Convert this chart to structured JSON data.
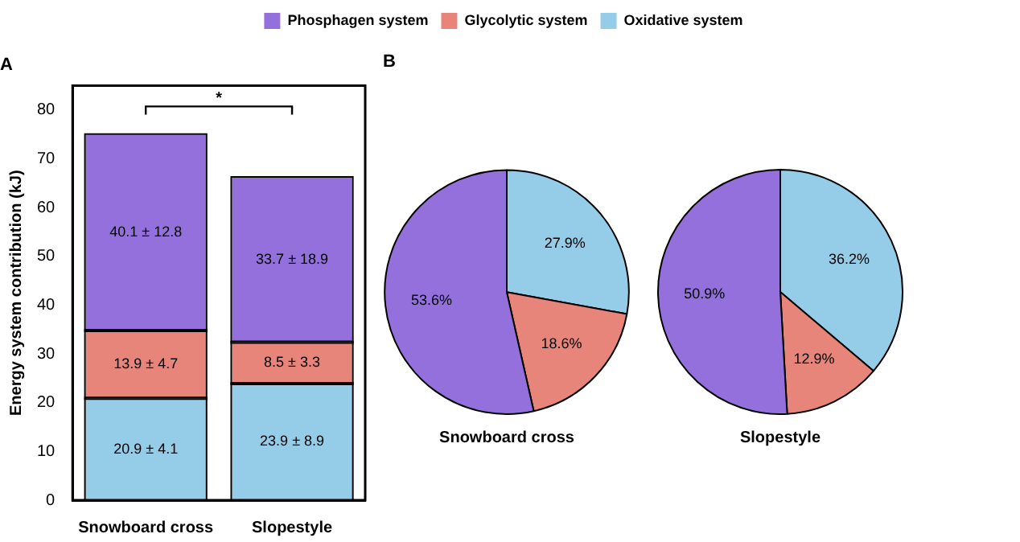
{
  "chart_data": [
    {
      "type": "bar",
      "title": "A",
      "ylabel": "Energy system contribution (kJ)",
      "categories": [
        "Snowboard cross",
        "Slopestyle"
      ],
      "stacked": true,
      "series": [
        {
          "name": "Oxidative system",
          "color": "#95cde8",
          "values": [
            20.9,
            23.9
          ],
          "value_labels": [
            "20.9 ± 4.1",
            "23.9 ± 8.9"
          ]
        },
        {
          "name": "Glycolytic system",
          "color": "#e8857a",
          "values": [
            13.9,
            8.5
          ],
          "value_labels": [
            "13.9 ± 4.7",
            "8.5 ± 3.3"
          ]
        },
        {
          "name": "Phosphagen system",
          "color": "#9370db",
          "values": [
            40.1,
            33.7
          ],
          "value_labels": [
            "40.1 ± 12.8",
            "33.7 ± 18.9"
          ]
        }
      ],
      "ylim": [
        0,
        85
      ],
      "yticks": [
        0,
        10,
        20,
        30,
        40,
        50,
        60,
        70,
        80
      ],
      "grid": false,
      "legend": "top",
      "annotations": [
        "*"
      ]
    },
    {
      "type": "pie",
      "title": "B",
      "xlabel": "Snowboard cross",
      "categories": [
        null,
        null,
        null
      ],
      "values": [
        27.9,
        18.6,
        53.6
      ],
      "colors": [
        "#95cde8",
        "#e8857a",
        "#9370db"
      ],
      "value_labels": [
        "27.9%",
        "18.6%",
        "53.6%"
      ],
      "legend": false
    },
    {
      "type": "pie",
      "xlabel": "Slopestyle",
      "categories": [
        null,
        null,
        null
      ],
      "values": [
        36.2,
        12.9,
        50.9
      ],
      "colors": [
        "#95cde8",
        "#e8857a",
        "#9370db"
      ],
      "value_labels": [
        "36.2%",
        "12.9%",
        "50.9%"
      ],
      "legend": false
    }
  ]
}
